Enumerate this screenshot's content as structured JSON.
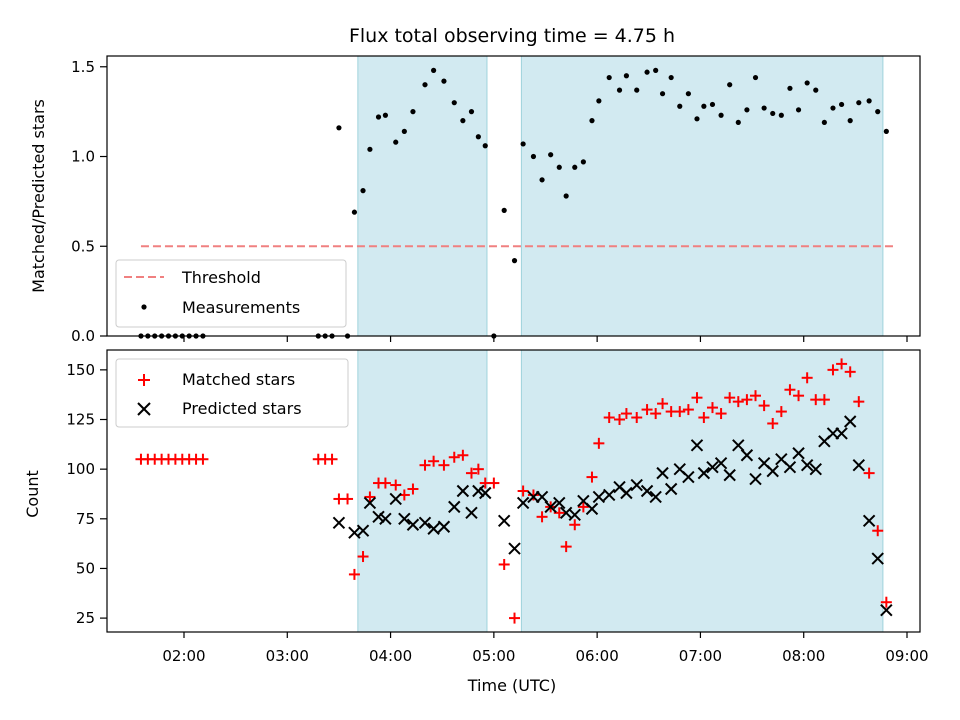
{
  "chart_data": [
    {
      "type": "scatter",
      "title": "Flux total observing time = 4.75 h",
      "ylabel": "Matched/Predicted stars",
      "xlabel": "",
      "ylim": [
        0,
        1.56
      ],
      "yticks": [
        0,
        0.5,
        1.0,
        1.5
      ],
      "ytick_labels": [
        "0.0",
        "0.5",
        "1.0",
        "1.5"
      ],
      "xlim": [
        "01:13",
        "09:13"
      ],
      "xticks": [
        "02:00",
        "03:00",
        "04:00",
        "05:00",
        "06:00",
        "07:00",
        "08:00",
        "09:00"
      ],
      "grid": false,
      "legend_placement": "lower-left",
      "shaded_intervals": [
        {
          "start": "03:41",
          "end": "04:56"
        },
        {
          "start": "05:16",
          "end": "08:46"
        }
      ],
      "shade_color": "#add8e6",
      "threshold": {
        "name": "Threshold",
        "y": 0.5,
        "x_start": "01:35",
        "x_end": "08:53",
        "color": "#f08080"
      },
      "series": [
        {
          "name": "Measurements",
          "color": "#000000",
          "points": [
            [
              "01:35",
              0
            ],
            [
              "01:39",
              0
            ],
            [
              "01:43",
              0
            ],
            [
              "01:47",
              0
            ],
            [
              "01:51",
              0
            ],
            [
              "01:55",
              0
            ],
            [
              "01:59",
              0
            ],
            [
              "02:03",
              0
            ],
            [
              "02:07",
              0
            ],
            [
              "02:11",
              0
            ],
            [
              "03:18",
              0
            ],
            [
              "03:22",
              0
            ],
            [
              "03:26",
              0
            ],
            [
              "03:30",
              1.16
            ],
            [
              "03:35",
              0
            ],
            [
              "03:39",
              0.69
            ],
            [
              "03:44",
              0.81
            ],
            [
              "03:48",
              1.04
            ],
            [
              "03:53",
              1.22
            ],
            [
              "03:57",
              1.23
            ],
            [
              "04:03",
              1.08
            ],
            [
              "04:08",
              1.14
            ],
            [
              "04:13",
              1.25
            ],
            [
              "04:20",
              1.4
            ],
            [
              "04:25",
              1.48
            ],
            [
              "04:31",
              1.42
            ],
            [
              "04:37",
              1.3
            ],
            [
              "04:42",
              1.2
            ],
            [
              "04:47",
              1.25
            ],
            [
              "04:51",
              1.11
            ],
            [
              "04:55",
              1.06
            ],
            [
              "05:00",
              0
            ],
            [
              "05:06",
              0.7
            ],
            [
              "05:12",
              0.42
            ],
            [
              "05:17",
              1.07
            ],
            [
              "05:23",
              1.0
            ],
            [
              "05:28",
              0.87
            ],
            [
              "05:33",
              1.01
            ],
            [
              "05:38",
              0.94
            ],
            [
              "05:42",
              0.78
            ],
            [
              "05:47",
              0.94
            ],
            [
              "05:52",
              0.97
            ],
            [
              "05:57",
              1.2
            ],
            [
              "06:01",
              1.31
            ],
            [
              "06:07",
              1.44
            ],
            [
              "06:13",
              1.37
            ],
            [
              "06:17",
              1.45
            ],
            [
              "06:23",
              1.37
            ],
            [
              "06:29",
              1.47
            ],
            [
              "06:34",
              1.48
            ],
            [
              "06:38",
              1.35
            ],
            [
              "06:43",
              1.44
            ],
            [
              "06:48",
              1.28
            ],
            [
              "06:53",
              1.35
            ],
            [
              "06:58",
              1.21
            ],
            [
              "07:02",
              1.28
            ],
            [
              "07:07",
              1.29
            ],
            [
              "07:12",
              1.23
            ],
            [
              "07:17",
              1.4
            ],
            [
              "07:22",
              1.19
            ],
            [
              "07:27",
              1.26
            ],
            [
              "07:32",
              1.44
            ],
            [
              "07:37",
              1.27
            ],
            [
              "07:42",
              1.24
            ],
            [
              "07:47",
              1.23
            ],
            [
              "07:52",
              1.38
            ],
            [
              "07:57",
              1.26
            ],
            [
              "08:02",
              1.41
            ],
            [
              "08:07",
              1.37
            ],
            [
              "08:12",
              1.19
            ],
            [
              "08:17",
              1.27
            ],
            [
              "08:22",
              1.29
            ],
            [
              "08:27",
              1.2
            ],
            [
              "08:32",
              1.3
            ],
            [
              "08:38",
              1.31
            ],
            [
              "08:43",
              1.25
            ],
            [
              "08:48",
              1.14
            ]
          ]
        }
      ]
    },
    {
      "type": "scatter",
      "title": "",
      "xlabel": "Time (UTC)",
      "ylabel": "Count",
      "ylim": [
        18,
        160
      ],
      "yticks": [
        25,
        50,
        75,
        100,
        125,
        150
      ],
      "ytick_labels": [
        "25",
        "50",
        "75",
        "100",
        "125",
        "150"
      ],
      "xlim": [
        "01:13",
        "09:13"
      ],
      "xticks": [
        "02:00",
        "03:00",
        "04:00",
        "05:00",
        "06:00",
        "07:00",
        "08:00",
        "09:00"
      ],
      "grid": false,
      "legend_placement": "upper-left",
      "shaded_intervals": [
        {
          "start": "03:41",
          "end": "04:56"
        },
        {
          "start": "05:16",
          "end": "08:46"
        }
      ],
      "shade_color": "#add8e6",
      "series": [
        {
          "name": "Matched stars",
          "marker": "+",
          "color": "#ff0000",
          "points": [
            [
              "01:35",
              105
            ],
            [
              "01:39",
              105
            ],
            [
              "01:43",
              105
            ],
            [
              "01:47",
              105
            ],
            [
              "01:51",
              105
            ],
            [
              "01:55",
              105
            ],
            [
              "01:59",
              105
            ],
            [
              "02:03",
              105
            ],
            [
              "02:07",
              105
            ],
            [
              "02:11",
              105
            ],
            [
              "03:18",
              105
            ],
            [
              "03:22",
              105
            ],
            [
              "03:26",
              105
            ],
            [
              "03:30",
              85
            ],
            [
              "03:35",
              85
            ],
            [
              "03:39",
              47
            ],
            [
              "03:44",
              56
            ],
            [
              "03:48",
              86
            ],
            [
              "03:53",
              93
            ],
            [
              "03:57",
              93
            ],
            [
              "04:03",
              92
            ],
            [
              "04:08",
              87
            ],
            [
              "04:13",
              90
            ],
            [
              "04:20",
              102
            ],
            [
              "04:25",
              104
            ],
            [
              "04:31",
              102
            ],
            [
              "04:37",
              106
            ],
            [
              "04:42",
              107
            ],
            [
              "04:47",
              98
            ],
            [
              "04:51",
              100
            ],
            [
              "04:55",
              93
            ],
            [
              "05:00",
              93
            ],
            [
              "05:06",
              52
            ],
            [
              "05:12",
              25
            ],
            [
              "05:17",
              89
            ],
            [
              "05:23",
              87
            ],
            [
              "05:28",
              76
            ],
            [
              "05:33",
              81
            ],
            [
              "05:38",
              78
            ],
            [
              "05:42",
              61
            ],
            [
              "05:47",
              72
            ],
            [
              "05:52",
              81
            ],
            [
              "05:57",
              96
            ],
            [
              "06:01",
              113
            ],
            [
              "06:07",
              126
            ],
            [
              "06:13",
              125
            ],
            [
              "06:17",
              128
            ],
            [
              "06:23",
              126
            ],
            [
              "06:29",
              130
            ],
            [
              "06:34",
              128
            ],
            [
              "06:38",
              133
            ],
            [
              "06:43",
              129
            ],
            [
              "06:48",
              129
            ],
            [
              "06:53",
              130
            ],
            [
              "06:58",
              136
            ],
            [
              "07:02",
              126
            ],
            [
              "07:07",
              131
            ],
            [
              "07:12",
              128
            ],
            [
              "07:17",
              136
            ],
            [
              "07:22",
              134
            ],
            [
              "07:27",
              135
            ],
            [
              "07:32",
              137
            ],
            [
              "07:37",
              132
            ],
            [
              "07:42",
              123
            ],
            [
              "07:47",
              129
            ],
            [
              "07:52",
              140
            ],
            [
              "07:57",
              137
            ],
            [
              "08:02",
              146
            ],
            [
              "08:07",
              135
            ],
            [
              "08:12",
              135
            ],
            [
              "08:17",
              150
            ],
            [
              "08:22",
              153
            ],
            [
              "08:27",
              149
            ],
            [
              "08:32",
              134
            ],
            [
              "08:38",
              98
            ],
            [
              "08:43",
              69
            ],
            [
              "08:48",
              33
            ]
          ]
        },
        {
          "name": "Predicted stars",
          "marker": "x",
          "color": "#000000",
          "points": [
            [
              "03:30",
              73
            ],
            [
              "03:39",
              68
            ],
            [
              "03:44",
              69
            ],
            [
              "03:48",
              83
            ],
            [
              "03:53",
              76
            ],
            [
              "03:57",
              75
            ],
            [
              "04:03",
              85
            ],
            [
              "04:08",
              75
            ],
            [
              "04:13",
              72
            ],
            [
              "04:20",
              73
            ],
            [
              "04:25",
              70
            ],
            [
              "04:31",
              71
            ],
            [
              "04:37",
              81
            ],
            [
              "04:42",
              89
            ],
            [
              "04:47",
              78
            ],
            [
              "04:51",
              89
            ],
            [
              "04:55",
              88
            ],
            [
              "05:06",
              74
            ],
            [
              "05:12",
              60
            ],
            [
              "05:17",
              83
            ],
            [
              "05:23",
              86
            ],
            [
              "05:28",
              86
            ],
            [
              "05:33",
              81
            ],
            [
              "05:38",
              83
            ],
            [
              "05:42",
              78
            ],
            [
              "05:47",
              77
            ],
            [
              "05:52",
              84
            ],
            [
              "05:57",
              80
            ],
            [
              "06:01",
              86
            ],
            [
              "06:07",
              87
            ],
            [
              "06:13",
              91
            ],
            [
              "06:17",
              88
            ],
            [
              "06:23",
              92
            ],
            [
              "06:29",
              89
            ],
            [
              "06:34",
              86
            ],
            [
              "06:38",
              98
            ],
            [
              "06:43",
              90
            ],
            [
              "06:48",
              100
            ],
            [
              "06:53",
              96
            ],
            [
              "06:58",
              112
            ],
            [
              "07:02",
              98
            ],
            [
              "07:07",
              101
            ],
            [
              "07:12",
              103
            ],
            [
              "07:17",
              97
            ],
            [
              "07:22",
              112
            ],
            [
              "07:27",
              107
            ],
            [
              "07:32",
              95
            ],
            [
              "07:37",
              103
            ],
            [
              "07:42",
              99
            ],
            [
              "07:47",
              105
            ],
            [
              "07:52",
              101
            ],
            [
              "07:57",
              108
            ],
            [
              "08:02",
              102
            ],
            [
              "08:07",
              100
            ],
            [
              "08:12",
              114
            ],
            [
              "08:17",
              118
            ],
            [
              "08:22",
              118
            ],
            [
              "08:27",
              124
            ],
            [
              "08:32",
              102
            ],
            [
              "08:38",
              74
            ],
            [
              "08:43",
              55
            ],
            [
              "08:48",
              29
            ]
          ]
        }
      ]
    }
  ]
}
